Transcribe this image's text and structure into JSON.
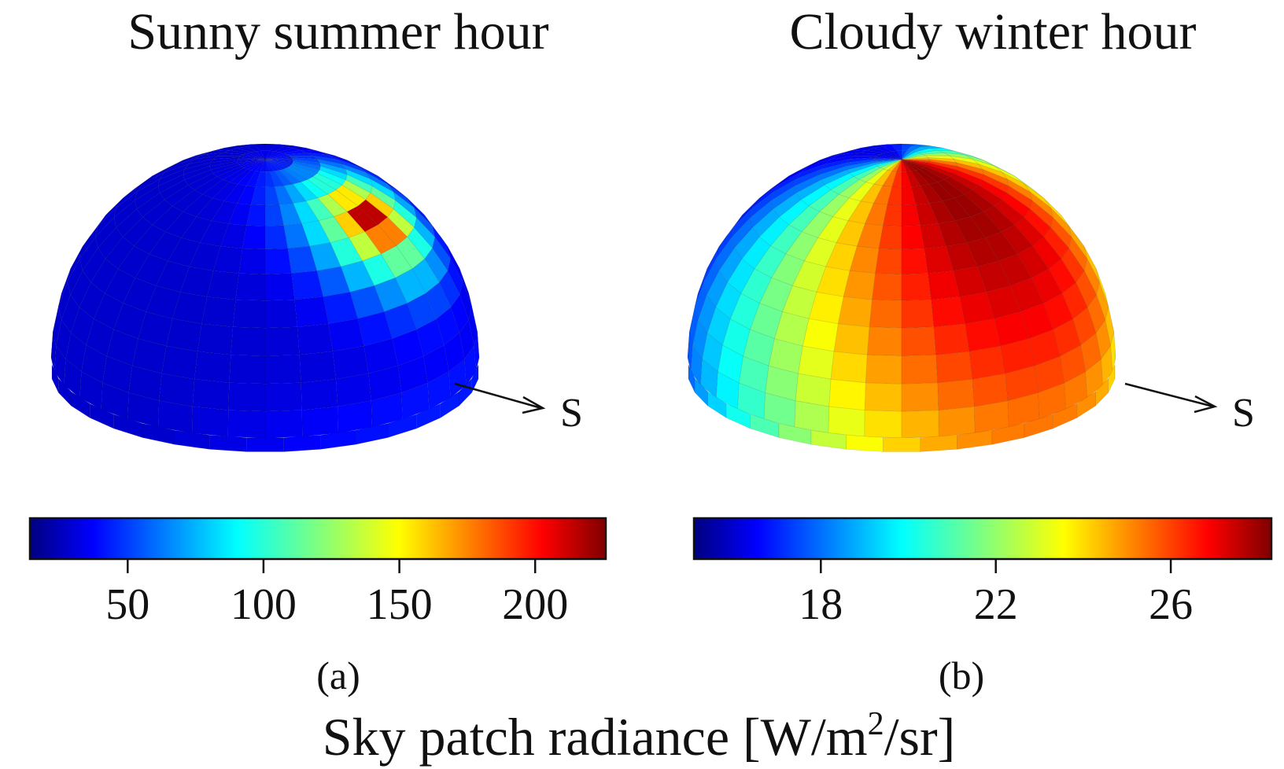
{
  "chart_data": [
    {
      "type": "heatmap",
      "title": "Sunny summer hour",
      "panel_label": "(a)",
      "direction_label": "S",
      "colorbar": {
        "ticks": [
          50,
          100,
          150,
          200
        ],
        "range": [
          14,
          226
        ],
        "colormap": "jet"
      },
      "peak_value": 226,
      "peak_azimuth_deg": 60,
      "peak_elevation_deg": 55,
      "base_value": 30
    },
    {
      "type": "heatmap",
      "title": "Cloudy winter hour",
      "panel_label": "(b)",
      "direction_label": "S",
      "colorbar": {
        "ticks": [
          18,
          22,
          26
        ],
        "range": [
          15.1,
          28.3
        ],
        "colormap": "jet"
      },
      "min_value": 16.5,
      "max_value": 28,
      "max_azimuth_deg": 40
    }
  ],
  "shared": {
    "quantity_label": "Sky patch radiance [W/m",
    "quantity_sup": "2",
    "quantity_tail": "/sr]"
  },
  "colors": {
    "jet": [
      "#00007f",
      "#0000ff",
      "#007fff",
      "#00ffff",
      "#7fff7f",
      "#ffff00",
      "#ff7f00",
      "#ff0000",
      "#7f0000"
    ],
    "arrow": "#111111",
    "text": "#111111"
  }
}
